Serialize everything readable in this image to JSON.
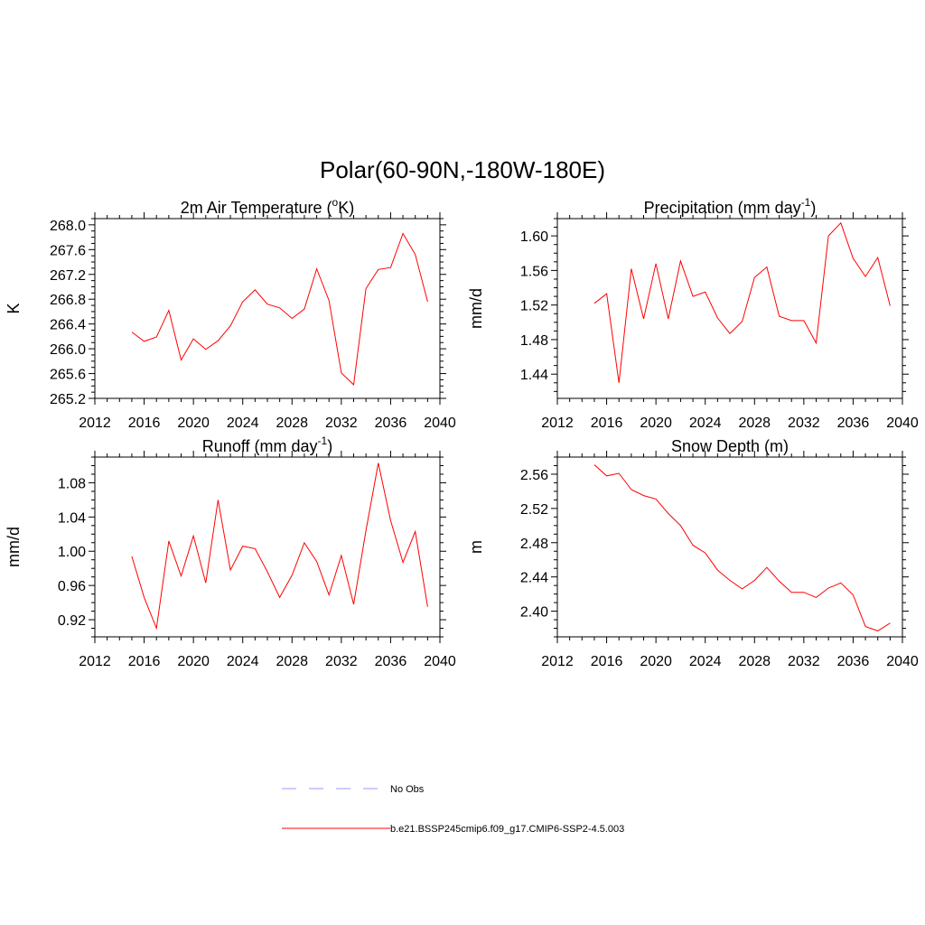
{
  "figure_title": "Polar(60-90N,-180W-180E)",
  "colors": {
    "model": "#ff0000",
    "obs": "#9999ff",
    "axis": "#000000"
  },
  "legend": {
    "obs_label": "No Obs",
    "model_label": "b.e21.BSSP245cmip6.f09_g17.CMIP6-SSP2-4.5.003"
  },
  "chart_data": [
    {
      "id": "tas",
      "type": "line",
      "title": "2m Air Temperature (",
      "title_sup": "o",
      "title_after": "K)",
      "ylabel": "K",
      "xlim": [
        2012,
        2040
      ],
      "ylim": [
        265.2,
        268.1
      ],
      "xticks": [
        2012,
        2016,
        2020,
        2024,
        2028,
        2032,
        2036,
        2040
      ],
      "xtick_labels": [
        "2012",
        "2016",
        "2020",
        "2024",
        "2028",
        "2032",
        "2036",
        "2040"
      ],
      "yticks": [
        265.2,
        265.6,
        266.0,
        266.4,
        266.8,
        267.2,
        267.6,
        268.0
      ],
      "ytick_labels": [
        "265.2",
        "265.6",
        "266.0",
        "266.4",
        "266.8",
        "267.2",
        "267.6",
        "268.0"
      ],
      "x": [
        2015,
        2016,
        2017,
        2018,
        2019,
        2020,
        2021,
        2022,
        2023,
        2024,
        2025,
        2026,
        2027,
        2028,
        2029,
        2030,
        2031,
        2032,
        2033,
        2034,
        2035,
        2036,
        2037,
        2038,
        2039
      ],
      "series": [
        {
          "name": "b.e21.BSSP245cmip6.f09_g17.CMIP6-SSP2-4.5.003",
          "values": [
            266.27,
            266.12,
            266.19,
            266.62,
            265.82,
            266.16,
            265.99,
            266.13,
            266.37,
            266.76,
            266.95,
            266.72,
            266.66,
            266.49,
            266.64,
            267.29,
            266.78,
            265.61,
            265.42,
            266.97,
            267.28,
            267.31,
            267.86,
            267.52,
            266.76
          ]
        }
      ]
    },
    {
      "id": "precip",
      "type": "line",
      "title": "Precipitation (mm day",
      "title_sup": "-1",
      "title_after": ")",
      "ylabel": "mm/d",
      "xlim": [
        2012,
        2040
      ],
      "ylim": [
        1.412,
        1.62
      ],
      "xticks": [
        2012,
        2016,
        2020,
        2024,
        2028,
        2032,
        2036,
        2040
      ],
      "xtick_labels": [
        "2012",
        "2016",
        "2020",
        "2024",
        "2028",
        "2032",
        "2036",
        "2040"
      ],
      "yticks": [
        1.44,
        1.48,
        1.52,
        1.56,
        1.6
      ],
      "ytick_labels": [
        "1.44",
        "1.48",
        "1.52",
        "1.56",
        "1.60"
      ],
      "x": [
        2015,
        2016,
        2017,
        2018,
        2019,
        2020,
        2021,
        2022,
        2023,
        2024,
        2025,
        2026,
        2027,
        2028,
        2029,
        2030,
        2031,
        2032,
        2033,
        2034,
        2035,
        2036,
        2037,
        2038,
        2039
      ],
      "series": [
        {
          "name": "b.e21.BSSP245cmip6.f09_g17.CMIP6-SSP2-4.5.003",
          "values": [
            1.522,
            1.533,
            1.43,
            1.562,
            1.504,
            1.568,
            1.504,
            1.571,
            1.53,
            1.535,
            1.505,
            1.487,
            1.501,
            1.552,
            1.564,
            1.507,
            1.502,
            1.502,
            1.476,
            1.6,
            1.615,
            1.574,
            1.553,
            1.575,
            1.519
          ]
        }
      ]
    },
    {
      "id": "runoff",
      "type": "line",
      "title": "Runoff (mm day",
      "title_sup": "-1",
      "title_after": ")",
      "ylabel": "mm/d",
      "xlim": [
        2012,
        2040
      ],
      "ylim": [
        0.9,
        1.11
      ],
      "xticks": [
        2012,
        2016,
        2020,
        2024,
        2028,
        2032,
        2036,
        2040
      ],
      "xtick_labels": [
        "2012",
        "2016",
        "2020",
        "2024",
        "2028",
        "2032",
        "2036",
        "2040"
      ],
      "yticks": [
        0.92,
        0.96,
        1.0,
        1.04,
        1.08
      ],
      "ytick_labels": [
        "0.92",
        "0.96",
        "1.00",
        "1.04",
        "1.08"
      ],
      "x": [
        2015,
        2016,
        2017,
        2018,
        2019,
        2020,
        2021,
        2022,
        2023,
        2024,
        2025,
        2026,
        2027,
        2028,
        2029,
        2030,
        2031,
        2032,
        2033,
        2034,
        2035,
        2036,
        2037,
        2038,
        2039
      ],
      "series": [
        {
          "name": "b.e21.BSSP245cmip6.f09_g17.CMIP6-SSP2-4.5.003",
          "values": [
            0.994,
            0.946,
            0.91,
            1.012,
            0.971,
            1.018,
            0.963,
            1.06,
            0.978,
            1.006,
            1.003,
            0.976,
            0.946,
            0.972,
            1.01,
            0.988,
            0.949,
            0.995,
            0.938,
            1.024,
            1.103,
            1.036,
            0.987,
            1.023,
            0.935
          ]
        }
      ]
    },
    {
      "id": "snowdepth",
      "type": "line",
      "title": "Snow Depth (m)",
      "title_sup": "",
      "title_after": "",
      "ylabel": "m",
      "xlim": [
        2012,
        2040
      ],
      "ylim": [
        2.37,
        2.58
      ],
      "xticks": [
        2012,
        2016,
        2020,
        2024,
        2028,
        2032,
        2036,
        2040
      ],
      "xtick_labels": [
        "2012",
        "2016",
        "2020",
        "2024",
        "2028",
        "2032",
        "2036",
        "2040"
      ],
      "yticks": [
        2.4,
        2.44,
        2.48,
        2.52,
        2.56
      ],
      "ytick_labels": [
        "2.40",
        "2.44",
        "2.48",
        "2.52",
        "2.56"
      ],
      "x": [
        2015,
        2016,
        2017,
        2018,
        2019,
        2020,
        2021,
        2022,
        2023,
        2024,
        2025,
        2026,
        2027,
        2028,
        2029,
        2030,
        2031,
        2032,
        2033,
        2034,
        2035,
        2036,
        2037,
        2038,
        2039
      ],
      "series": [
        {
          "name": "b.e21.BSSP245cmip6.f09_g17.CMIP6-SSP2-4.5.003",
          "values": [
            2.571,
            2.558,
            2.561,
            2.542,
            2.535,
            2.531,
            2.514,
            2.5,
            2.477,
            2.468,
            2.448,
            2.436,
            2.426,
            2.436,
            2.451,
            2.435,
            2.422,
            2.422,
            2.416,
            2.427,
            2.433,
            2.419,
            2.382,
            2.377,
            2.386
          ]
        }
      ]
    }
  ]
}
